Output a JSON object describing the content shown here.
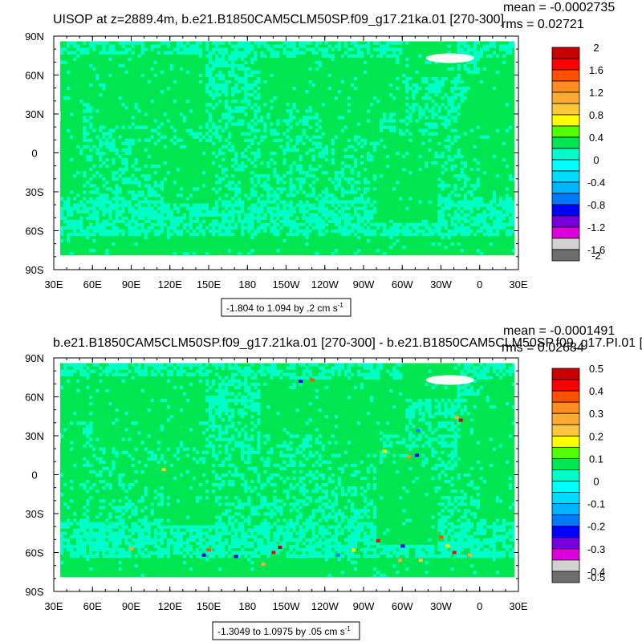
{
  "chart_data": [
    {
      "type": "heatmap",
      "title": "UISOP at z=2889.4m, b.e21.B1850CAM5CLM50SP.f09_g17.21ka.01 [270-300]",
      "stats": {
        "mean": "mean = -0.0002735",
        "rms": "rms = 0.02721"
      },
      "x_ticks": [
        "30E",
        "60E",
        "90E",
        "120E",
        "150E",
        "180",
        "150W",
        "120W",
        "90W",
        "60W",
        "30W",
        "0",
        "30E"
      ],
      "y_ticks": [
        "90N",
        "60N",
        "30N",
        "0",
        "30S",
        "60S",
        "90S"
      ],
      "xlim": [
        30,
        390
      ],
      "ylim": [
        -90,
        90
      ],
      "colorbar": {
        "labels": [
          "2",
          "1.6",
          "1.2",
          "0.8",
          "0.4",
          "0",
          "-0.4",
          "-0.8",
          "-1.2",
          "-1.6",
          "-2"
        ],
        "colors": [
          "#c80000",
          "#ff0000",
          "#ff5000",
          "#ff8c1e",
          "#ffaa32",
          "#ffc83c",
          "#ffff00",
          "#50ff00",
          "#00e650",
          "#00ffc8",
          "#00ffff",
          "#00dcff",
          "#00b4ff",
          "#0078ff",
          "#0000ff",
          "#7800dc",
          "#dc00dc",
          "#d2d2d2",
          "#6e6e6e"
        ]
      },
      "range_label": "-1.804 to 1.094 by .2 cm s",
      "range_exp": "-1",
      "colors": {
        "land": "#00e650",
        "ocean": "#00ffc8",
        "ice": "#ffffff"
      },
      "noise_seed": 7,
      "hotspots": []
    },
    {
      "type": "heatmap",
      "title": "b.e21.B1850CAM5CLM50SP.f09_g17.21ka.01 [270-300] - b.e21.B1850CAM5CLM50SP.f09_g17.PI.01 [",
      "stats": {
        "mean": "mean = -0.0001491",
        "rms": "rms = 0.02684"
      },
      "x_ticks": [
        "30E",
        "60E",
        "90E",
        "120E",
        "150E",
        "180",
        "150W",
        "120W",
        "90W",
        "60W",
        "30W",
        "0",
        "30E"
      ],
      "y_ticks": [
        "90N",
        "60N",
        "30N",
        "0",
        "30S",
        "60S",
        "90S"
      ],
      "xlim": [
        30,
        390
      ],
      "ylim": [
        -90,
        90
      ],
      "colorbar": {
        "labels": [
          "0.5",
          "0.4",
          "0.3",
          "0.2",
          "0.1",
          "0",
          "-0.1",
          "-0.2",
          "-0.3",
          "-0.4",
          "-0.5"
        ],
        "colors": [
          "#c80000",
          "#ff0000",
          "#ff5000",
          "#ff8c1e",
          "#ffaa32",
          "#ffc83c",
          "#ffff00",
          "#50ff00",
          "#00e650",
          "#00ffc8",
          "#00ffff",
          "#00dcff",
          "#00b4ff",
          "#0078ff",
          "#0000ff",
          "#7800dc",
          "#dc00dc",
          "#d2d2d2",
          "#6e6e6e"
        ]
      },
      "range_label": "-1.3049 to 1.0975 by .05 cm s",
      "range_exp": "-1",
      "colors": {
        "land": "#00e650",
        "ocean": "#00ffc8",
        "ice": "#ffffff"
      },
      "noise_seed": 13,
      "hotspots": [
        {
          "lon": 221,
          "lat": 72,
          "color": "#0000ff"
        },
        {
          "lon": 230,
          "lat": 73,
          "color": "#ff5000"
        },
        {
          "lon": 312,
          "lat": 34,
          "color": "#0078ff"
        },
        {
          "lon": 305,
          "lat": 14,
          "color": "#ff8c1e"
        },
        {
          "lon": 311,
          "lat": 15,
          "color": "#0000ff"
        },
        {
          "lon": 286,
          "lat": 18,
          "color": "#ffff00"
        },
        {
          "lon": 342,
          "lat": 44,
          "color": "#ffaa32"
        },
        {
          "lon": 345,
          "lat": 42,
          "color": "#c80000"
        },
        {
          "lon": 205,
          "lat": -56,
          "color": "#c80000"
        },
        {
          "lon": 200,
          "lat": -60,
          "color": "#ff0000"
        },
        {
          "lon": 171,
          "lat": -63,
          "color": "#0000ff"
        },
        {
          "lon": 192,
          "lat": -69,
          "color": "#ffaa32"
        },
        {
          "lon": 281,
          "lat": -51,
          "color": "#ff0000"
        },
        {
          "lon": 300,
          "lat": -55,
          "color": "#0000ff"
        },
        {
          "lon": 330,
          "lat": -48,
          "color": "#ff5000"
        },
        {
          "lon": 335,
          "lat": -55,
          "color": "#ffff00"
        },
        {
          "lon": 340,
          "lat": -60,
          "color": "#ff0000"
        },
        {
          "lon": 352,
          "lat": -62,
          "color": "#ffaa32"
        },
        {
          "lon": 298,
          "lat": -66,
          "color": "#ffaa32"
        },
        {
          "lon": 314,
          "lat": -66,
          "color": "#ffc83c"
        },
        {
          "lon": 150,
          "lat": -58,
          "color": "#ff5000"
        },
        {
          "lon": 146,
          "lat": -62,
          "color": "#0000ff"
        },
        {
          "lon": 90,
          "lat": -57,
          "color": "#ffaa32"
        },
        {
          "lon": 250,
          "lat": -62,
          "color": "#0078ff"
        },
        {
          "lon": 262,
          "lat": -58,
          "color": "#ffff00"
        },
        {
          "lon": 115,
          "lat": 4,
          "color": "#ffc83c"
        }
      ]
    }
  ]
}
